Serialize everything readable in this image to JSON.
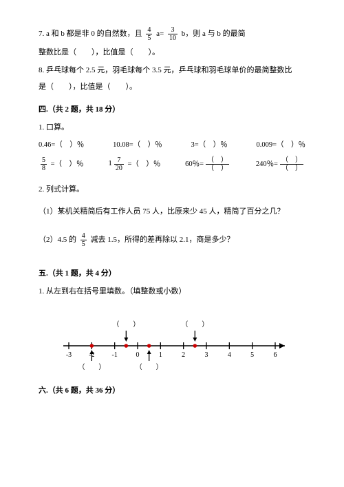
{
  "q7": {
    "pre": "7. a 和 b 都是非 0 的自然数，且",
    "f1_num": "4",
    "f1_den": "5",
    "mid": "a=",
    "f2_num": "3",
    "f2_den": "10",
    "post": "b，则 a 与 b 的最简",
    "line2": "整数比是（　　），比值是（　　）。"
  },
  "q8": {
    "l1": "8. 乒乓球每个 2.5 元，羽毛球每个 3.5 元，乒乓球和羽毛球单价的最简整数比",
    "l2": "是（　　），比值是（　　）。"
  },
  "sec4": "四.（共 2 题，共 18 分）",
  "s4q1": "1. 口算。",
  "calc": {
    "r1c1": "0.46=（　）％",
    "r1c2": "10.08=（　）％",
    "r1c3": "3=（　）％",
    "r1c4": "0.009=（　）％",
    "r2c1_num": "5",
    "r2c1_den": "8",
    "r2c1_tail": " =（　）％",
    "r2c2_whole": "1",
    "r2c2_num": "7",
    "r2c2_den": "20",
    "r2c2_tail": " =（　）％",
    "r2c3_pre": "60％=",
    "r2c3_num": "（　）",
    "r2c3_den": "（　）",
    "r2c4_pre": "240％=",
    "r2c4_num": "（　）",
    "r2c4_den": "（　）"
  },
  "s4q2": "2. 列式计算。",
  "s4q2a": "（1）某机关精简后有工作人员 75 人，比原来少 45 人，精简了百分之几？",
  "s4q2b_pre": "（2）4.5 的",
  "s4q2b_num": "4",
  "s4q2b_den": "5",
  "s4q2b_post": "减去 1.5，所得的差再除以 2.1，商是多少？",
  "sec5": "五.（共 1 题，共 4 分）",
  "s5q1": "1. 从左到右在括号里填数。（填整数或小数）",
  "numline": {
    "ticks": [
      "-3",
      "-2",
      "-1",
      "0",
      "1",
      "2",
      "3",
      "4",
      "5",
      "6"
    ],
    "dots_x": [
      -2,
      -0.5,
      0.5,
      2.5
    ],
    "uplabels_x": [
      -0.5,
      2.5
    ],
    "uplabel_text": "（　　）",
    "downlabels_x": [
      -2,
      0.5
    ],
    "downlabel_text": "（　　）",
    "line_color": "#000000",
    "dot_color": "#cc0000",
    "arrow_color": "#000000"
  },
  "sec6": "六.（共 6 题，共 36 分）"
}
